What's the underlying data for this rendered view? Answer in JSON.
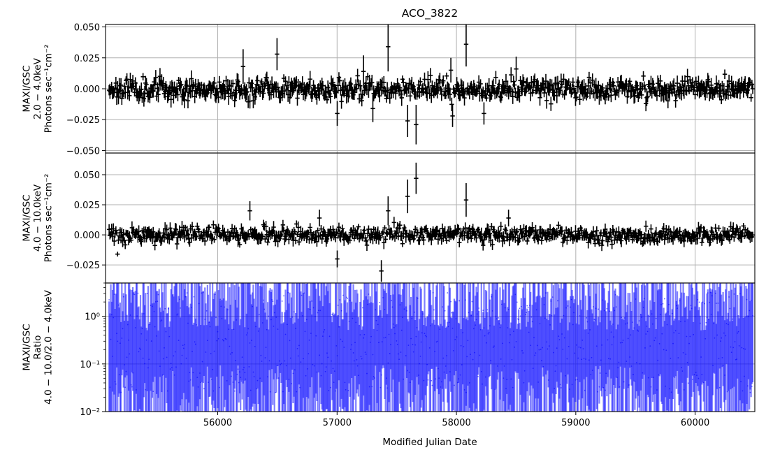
{
  "chart_data": {
    "type": "errorbar",
    "title": "ACO_3822",
    "xlabel": "Modified Julian Date",
    "xlim": [
      55060,
      60500
    ],
    "xticks": [
      56000,
      57000,
      58000,
      59000,
      60000
    ],
    "grid": true,
    "panels": [
      {
        "name": "soft",
        "ylabel_lines": [
          "MAXI/GSC",
          "2.0 − 4.0keV",
          "Photons sec⁻¹cm⁻²"
        ],
        "ylim": [
          -0.052,
          0.052
        ],
        "yticks": [
          {
            "v": 0.05,
            "label": "0.050"
          },
          {
            "v": 0.025,
            "label": "0.025"
          },
          {
            "v": 0.0,
            "label": "0.000"
          },
          {
            "v": -0.025,
            "label": "−0.025"
          },
          {
            "v": -0.05,
            "label": "−0.050"
          }
        ],
        "scale": "linear",
        "color": "#000000",
        "noise_sigma": 0.0042,
        "noise_err": 0.005,
        "seed": 11,
        "features": [
          {
            "x": 56210,
            "y": 0.018,
            "err": 0.014
          },
          {
            "x": 56270,
            "y": -0.01,
            "err": 0.006
          },
          {
            "x": 56500,
            "y": 0.028,
            "err": 0.013
          },
          {
            "x": 57000,
            "y": -0.02,
            "err": 0.01
          },
          {
            "x": 57220,
            "y": 0.014,
            "err": 0.013
          },
          {
            "x": 57300,
            "y": -0.016,
            "err": 0.011
          },
          {
            "x": 57430,
            "y": 0.034,
            "err": 0.02
          },
          {
            "x": 57590,
            "y": -0.026,
            "err": 0.013
          },
          {
            "x": 57660,
            "y": -0.029,
            "err": 0.016
          },
          {
            "x": 57950,
            "y": 0.015,
            "err": 0.01
          },
          {
            "x": 57970,
            "y": -0.022,
            "err": 0.009
          },
          {
            "x": 58080,
            "y": 0.036,
            "err": 0.018
          },
          {
            "x": 58230,
            "y": -0.02,
            "err": 0.009
          },
          {
            "x": 58500,
            "y": 0.016,
            "err": 0.01
          }
        ]
      },
      {
        "name": "hard",
        "ylabel_lines": [
          "MAXI/GSC",
          "4.0 − 10.0keV",
          "Photons sec⁻¹cm⁻²"
        ],
        "ylim": [
          -0.04,
          0.068
        ],
        "yticks": [
          {
            "v": 0.05,
            "label": "0.050"
          },
          {
            "v": 0.025,
            "label": "0.025"
          },
          {
            "v": 0.0,
            "label": "0.000"
          },
          {
            "v": -0.025,
            "label": "−0.025"
          }
        ],
        "scale": "linear",
        "color": "#000000",
        "noise_sigma": 0.0032,
        "noise_err": 0.004,
        "seed": 29,
        "features": [
          {
            "x": 55160,
            "y": -0.016,
            "err": 0.002
          },
          {
            "x": 56270,
            "y": 0.02,
            "err": 0.008
          },
          {
            "x": 56850,
            "y": 0.014,
            "err": 0.007
          },
          {
            "x": 57000,
            "y": -0.02,
            "err": 0.007
          },
          {
            "x": 57370,
            "y": -0.03,
            "err": 0.009
          },
          {
            "x": 57430,
            "y": 0.02,
            "err": 0.012
          },
          {
            "x": 57590,
            "y": 0.032,
            "err": 0.014
          },
          {
            "x": 57660,
            "y": 0.047,
            "err": 0.013
          },
          {
            "x": 58080,
            "y": 0.029,
            "err": 0.014
          },
          {
            "x": 58440,
            "y": 0.014,
            "err": 0.007
          }
        ]
      },
      {
        "name": "ratio",
        "ylabel_lines": [
          "MAXI/GSC",
          "Ratio",
          "4.0 − 10.0/2.0 − 4.0keV"
        ],
        "ylim": [
          0.01,
          5
        ],
        "ymajor": [
          {
            "v": 0.01,
            "label": "10⁻²"
          },
          {
            "v": 0.1,
            "label": "10⁻¹"
          },
          {
            "v": 1,
            "label": "10⁰"
          }
        ],
        "scale": "log",
        "color": "#0000ff",
        "seed": 7
      }
    ],
    "n_points": 760
  }
}
